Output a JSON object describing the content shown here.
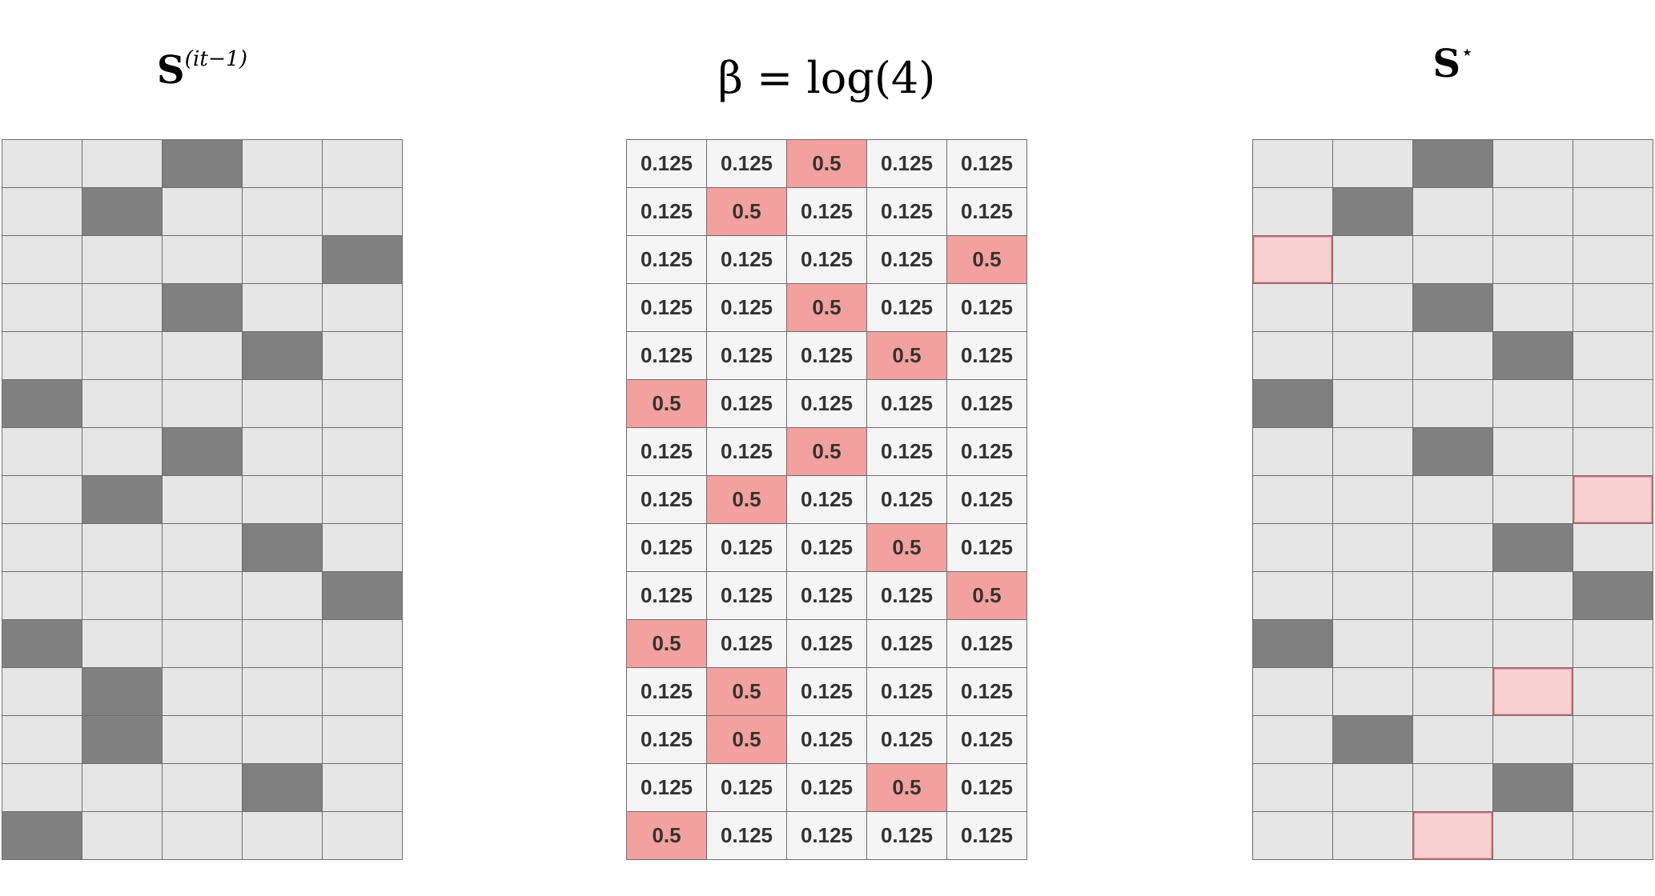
{
  "colors": {
    "empty": "#e6e6e6",
    "filled": "#808080",
    "prob_bg": "#f5f5f5",
    "prob_high": "#f2a19f",
    "added": "#f8d0d1",
    "added_border": "#d96a6a",
    "grid_line": "#6f6f6f"
  },
  "left": {
    "title_base": "S",
    "title_sup": "(it−1)",
    "selected_columns": [
      2,
      1,
      4,
      2,
      3,
      0,
      2,
      1,
      3,
      4,
      0,
      1,
      1,
      3,
      0
    ]
  },
  "middle": {
    "title": "β = log(4)",
    "values": [
      [
        "0.125",
        "0.125",
        "0.5",
        "0.125",
        "0.125"
      ],
      [
        "0.125",
        "0.5",
        "0.125",
        "0.125",
        "0.125"
      ],
      [
        "0.125",
        "0.125",
        "0.125",
        "0.125",
        "0.5"
      ],
      [
        "0.125",
        "0.125",
        "0.5",
        "0.125",
        "0.125"
      ],
      [
        "0.125",
        "0.125",
        "0.125",
        "0.5",
        "0.125"
      ],
      [
        "0.5",
        "0.125",
        "0.125",
        "0.125",
        "0.125"
      ],
      [
        "0.125",
        "0.125",
        "0.5",
        "0.125",
        "0.125"
      ],
      [
        "0.125",
        "0.5",
        "0.125",
        "0.125",
        "0.125"
      ],
      [
        "0.125",
        "0.125",
        "0.125",
        "0.5",
        "0.125"
      ],
      [
        "0.125",
        "0.125",
        "0.125",
        "0.125",
        "0.5"
      ],
      [
        "0.5",
        "0.125",
        "0.125",
        "0.125",
        "0.125"
      ],
      [
        "0.125",
        "0.5",
        "0.125",
        "0.125",
        "0.125"
      ],
      [
        "0.125",
        "0.5",
        "0.125",
        "0.125",
        "0.125"
      ],
      [
        "0.125",
        "0.125",
        "0.125",
        "0.5",
        "0.125"
      ],
      [
        "0.5",
        "0.125",
        "0.125",
        "0.125",
        "0.125"
      ]
    ]
  },
  "right": {
    "title_base": "S",
    "title_sup": "⋆",
    "cells": [
      [
        "e",
        "e",
        "f",
        "e",
        "e"
      ],
      [
        "e",
        "f",
        "e",
        "e",
        "e"
      ],
      [
        "a",
        "e",
        "e",
        "e",
        "e"
      ],
      [
        "e",
        "e",
        "f",
        "e",
        "e"
      ],
      [
        "e",
        "e",
        "e",
        "f",
        "e"
      ],
      [
        "f",
        "e",
        "e",
        "e",
        "e"
      ],
      [
        "e",
        "e",
        "f",
        "e",
        "e"
      ],
      [
        "e",
        "e",
        "e",
        "e",
        "a"
      ],
      [
        "e",
        "e",
        "e",
        "f",
        "e"
      ],
      [
        "e",
        "e",
        "e",
        "e",
        "f"
      ],
      [
        "f",
        "e",
        "e",
        "e",
        "e"
      ],
      [
        "e",
        "e",
        "e",
        "a",
        "e"
      ],
      [
        "e",
        "f",
        "e",
        "e",
        "e"
      ],
      [
        "e",
        "e",
        "e",
        "f",
        "e"
      ],
      [
        "e",
        "e",
        "a",
        "e",
        "e"
      ]
    ]
  }
}
